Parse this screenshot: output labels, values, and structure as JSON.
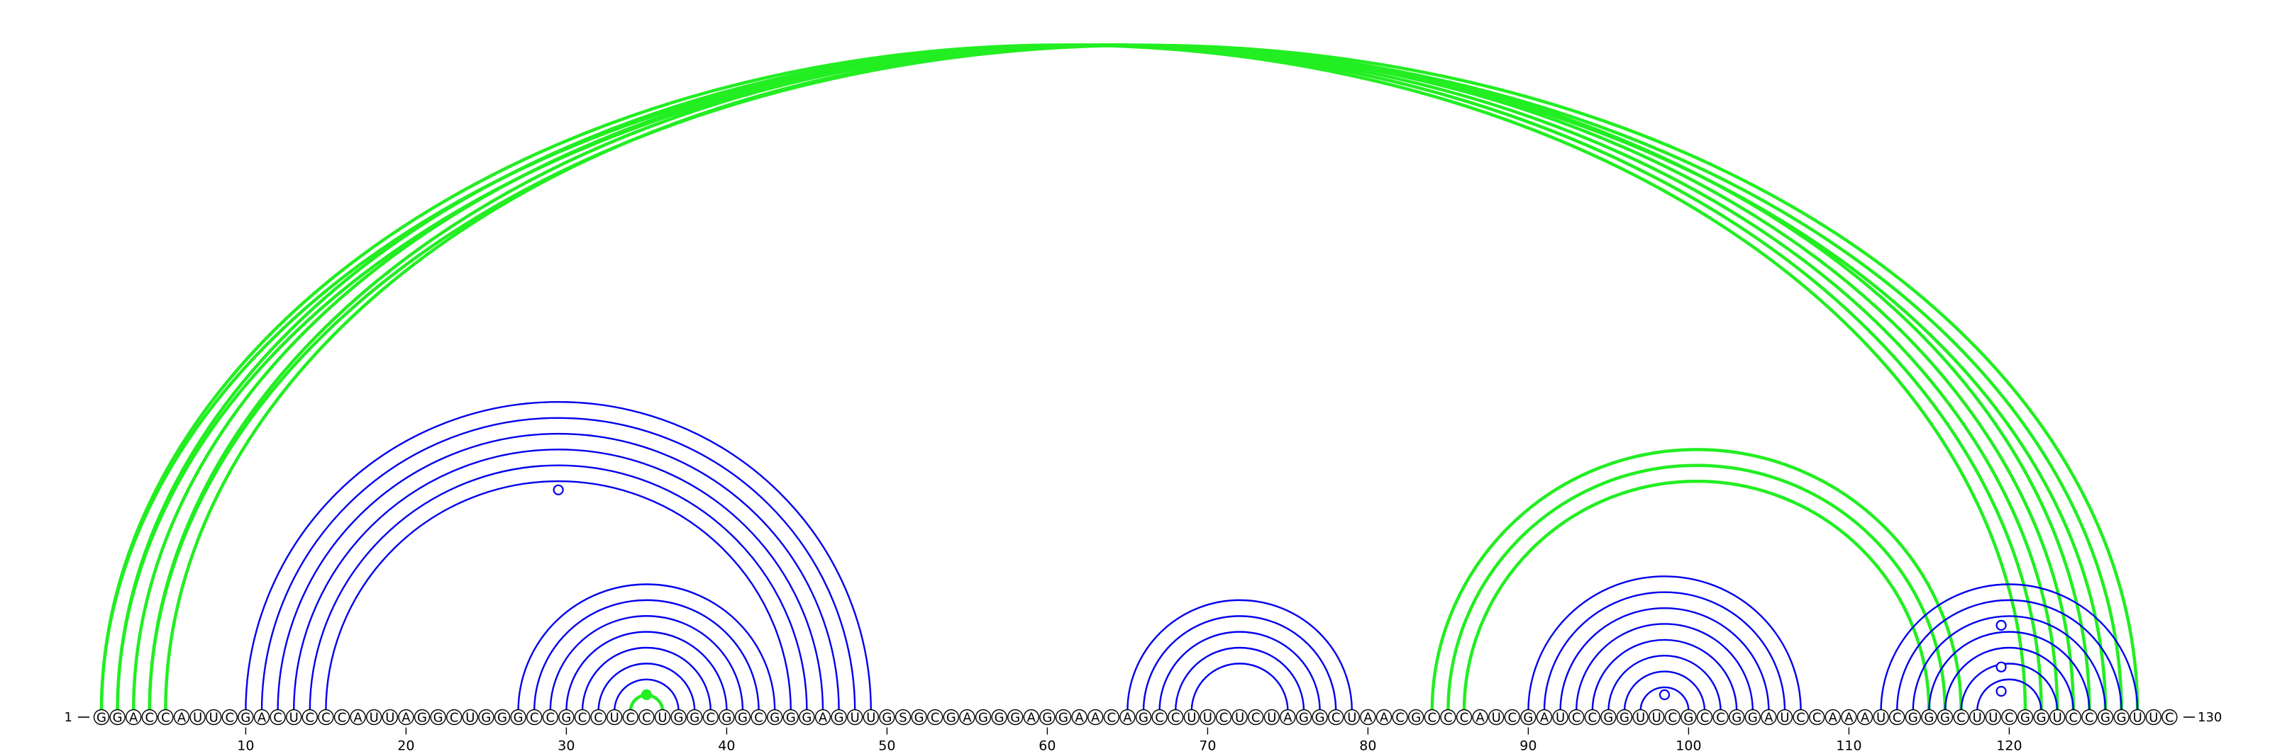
{
  "chart_data": {
    "type": "arc-diagram",
    "sequence": "GGACCAUUCGACUCCCAUUAGGCUGGGCCGCCUCCUGGCGGCGGGAGUUGSGCGAGGGAGGAACAGCCUUCUCUAGGCUAACGCCCAUCGAUCCGGUUCGCCGGAUCCAAAUCGGGCUUCGGUCCGGUUC",
    "start_label": "1",
    "end_label": "130",
    "ticks": [
      "10",
      "20",
      "30",
      "40",
      "50",
      "60",
      "70",
      "80",
      "90",
      "100",
      "110",
      "120"
    ],
    "colors": {
      "blue": "#0000ee",
      "green": "#22ee22",
      "letters": "#000000"
    },
    "arcs": [
      {
        "color": "green",
        "pairs": [
          [
            1,
            121
          ],
          [
            2,
            122
          ],
          [
            3,
            123
          ],
          [
            4,
            124
          ],
          [
            5,
            125
          ],
          [
            1,
            126
          ],
          [
            2,
            127
          ],
          [
            4,
            128
          ]
        ]
      },
      {
        "color": "blue",
        "pairs": [
          [
            10,
            49
          ],
          [
            11,
            48
          ],
          [
            12,
            47
          ],
          [
            13,
            46
          ],
          [
            14,
            45
          ],
          [
            15,
            44
          ]
        ]
      },
      {
        "color": "blue",
        "pairs": [
          [
            27,
            43
          ],
          [
            28,
            42
          ],
          [
            29,
            41
          ],
          [
            30,
            40
          ],
          [
            31,
            39
          ],
          [
            32,
            38
          ],
          [
            33,
            37
          ]
        ]
      },
      {
        "color": "green",
        "pairs": [
          [
            34,
            36
          ]
        ]
      },
      {
        "color": "blue",
        "pairs": [
          [
            65,
            79
          ],
          [
            66,
            78
          ],
          [
            67,
            77
          ],
          [
            68,
            76
          ],
          [
            69,
            75
          ]
        ]
      },
      {
        "color": "green",
        "pairs": [
          [
            84,
            117
          ],
          [
            85,
            116
          ],
          [
            86,
            115
          ]
        ]
      },
      {
        "color": "blue",
        "pairs": [
          [
            90,
            107
          ],
          [
            91,
            106
          ],
          [
            92,
            105
          ],
          [
            93,
            104
          ],
          [
            94,
            103
          ],
          [
            95,
            102
          ],
          [
            96,
            101
          ],
          [
            97,
            100
          ]
        ]
      },
      {
        "color": "blue",
        "pairs": [
          [
            112,
            128
          ],
          [
            113,
            127
          ],
          [
            114,
            126
          ],
          [
            115,
            125
          ],
          [
            116,
            124
          ],
          [
            117,
            123
          ],
          [
            118,
            122
          ]
        ]
      }
    ],
    "markers": [
      {
        "position": 29.5,
        "height": 0.63,
        "color": "blue",
        "filled": false
      },
      {
        "position": 35,
        "height": 0.04,
        "color": "green",
        "filled": true
      },
      {
        "position": 98.5,
        "height": 0.04,
        "color": "blue",
        "filled": false
      },
      {
        "position": 119.5,
        "height": 0.24,
        "color": "blue",
        "filled": false
      },
      {
        "position": 119.5,
        "height": 0.12,
        "color": "blue",
        "filled": false
      },
      {
        "position": 119.5,
        "height": 0.05,
        "color": "blue",
        "filled": false
      }
    ]
  }
}
